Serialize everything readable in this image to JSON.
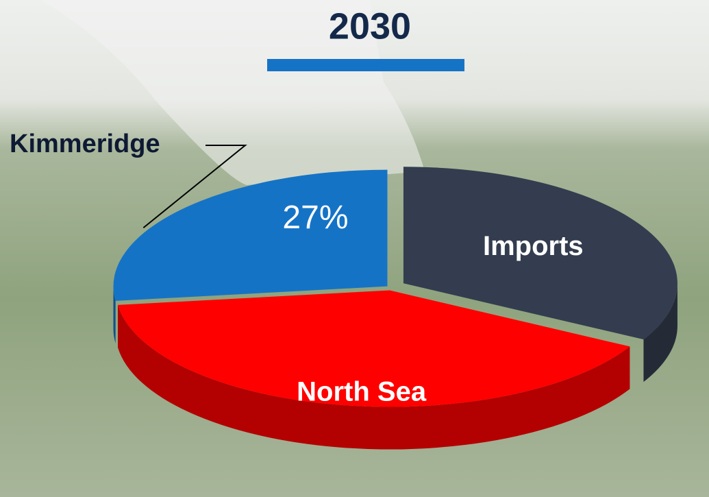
{
  "chart_data": {
    "type": "pie",
    "title": "2030",
    "categories": [
      "Imports",
      "North Sea",
      "Kimmeridge"
    ],
    "values": [
      33,
      40,
      27
    ],
    "value_labels": [
      null,
      null,
      "27%"
    ],
    "colors": [
      "#333d4f",
      "#ff0000",
      "#1573c6"
    ]
  }
}
